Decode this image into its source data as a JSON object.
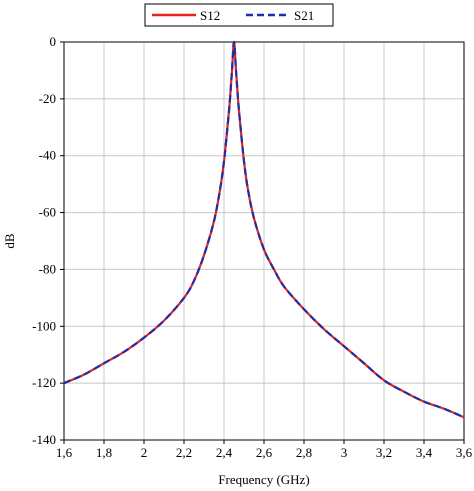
{
  "chart_data": {
    "type": "line",
    "title": "",
    "xlabel": "Frequency (GHz)",
    "ylabel": "dB",
    "xlim": [
      1.6,
      3.6
    ],
    "ylim": [
      -140,
      0
    ],
    "x_ticks": [
      1.6,
      1.8,
      2.0,
      2.2,
      2.4,
      2.6,
      2.8,
      3.0,
      3.2,
      3.4,
      3.6
    ],
    "x_tick_labels": [
      "1,6",
      "1,8",
      "2",
      "2,2",
      "2,4",
      "2,6",
      "2,8",
      "3",
      "3,2",
      "3,4",
      "3,6"
    ],
    "y_ticks": [
      0,
      -20,
      -40,
      -60,
      -80,
      -100,
      -120,
      -140
    ],
    "y_tick_labels": [
      "0",
      "-20",
      "-40",
      "-60",
      "-80",
      "-100",
      "-120",
      "-140"
    ],
    "grid": true,
    "legend_position": "top",
    "series": [
      {
        "name": "S12",
        "color": "#e8231c",
        "style": "solid",
        "x": [
          1.6,
          1.7,
          1.8,
          1.9,
          2.0,
          2.1,
          2.2,
          2.25,
          2.3,
          2.35,
          2.38,
          2.4,
          2.42,
          2.43,
          2.44,
          2.45,
          2.46,
          2.47,
          2.48,
          2.5,
          2.52,
          2.55,
          2.6,
          2.65,
          2.7,
          2.8,
          2.9,
          3.0,
          3.1,
          3.2,
          3.3,
          3.4,
          3.5,
          3.6
        ],
        "y": [
          -120,
          -117,
          -113,
          -109,
          -104,
          -98,
          -90,
          -84,
          -75,
          -63,
          -52,
          -42,
          -28,
          -20,
          -10,
          0,
          -10,
          -20,
          -28,
          -42,
          -52,
          -62,
          -73,
          -80,
          -86,
          -94,
          -101,
          -107,
          -113,
          -119,
          -123,
          -126.5,
          -129,
          -132
        ]
      },
      {
        "name": "S21",
        "color": "#1d2ea8",
        "style": "dashed",
        "x": [
          1.6,
          1.7,
          1.8,
          1.9,
          2.0,
          2.1,
          2.2,
          2.25,
          2.3,
          2.35,
          2.38,
          2.4,
          2.42,
          2.43,
          2.44,
          2.45,
          2.46,
          2.47,
          2.48,
          2.5,
          2.52,
          2.55,
          2.6,
          2.65,
          2.7,
          2.8,
          2.9,
          3.0,
          3.1,
          3.2,
          3.3,
          3.4,
          3.5,
          3.6
        ],
        "y": [
          -120,
          -117,
          -113,
          -109,
          -104,
          -98,
          -90,
          -84,
          -75,
          -63,
          -52,
          -42,
          -28,
          -20,
          -10,
          0,
          -10,
          -20,
          -28,
          -42,
          -52,
          -62,
          -73,
          -80,
          -86,
          -94,
          -101,
          -107,
          -113,
          -119,
          -123,
          -126.5,
          -129,
          -132
        ]
      }
    ]
  }
}
